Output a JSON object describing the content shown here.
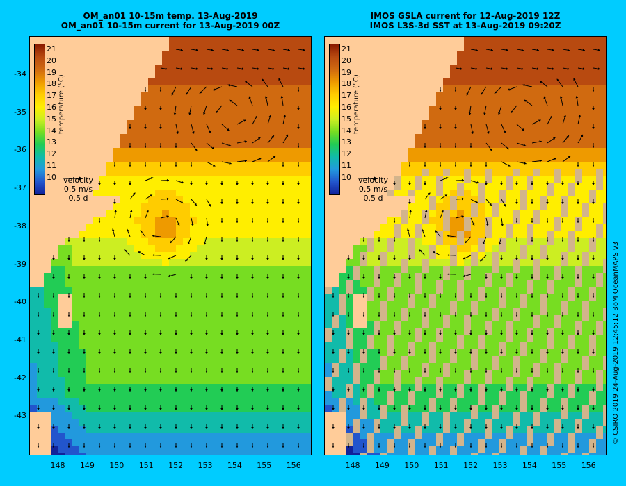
{
  "left_panel": {
    "title_line1": "OM_an01 10-15m temp. 13-Aug-2019",
    "title_line2": "OM_an01 10-15m current for 13-Aug-2019 00Z"
  },
  "right_panel": {
    "title_line1": "IMOS GSLA current for 12-Aug-2019 12Z",
    "title_line2": "IMOS L3S-3d SST at 13-Aug-2019 09:20Z"
  },
  "lat_labels": [
    "-34",
    "-35",
    "-36",
    "-37",
    "-38",
    "-39",
    "-40",
    "-41",
    "-42",
    "-43"
  ],
  "lon_labels": [
    "148",
    "149",
    "150",
    "151",
    "152",
    "153",
    "154",
    "155",
    "156"
  ],
  "colorbar": {
    "ticks": [
      "21",
      "20",
      "19",
      "18",
      "17",
      "16",
      "15",
      "14",
      "13",
      "12",
      "11",
      "10"
    ],
    "label": "temperature (°C)",
    "colors": [
      "#8b1a00",
      "#b84a10",
      "#d06a10",
      "#ee9a00",
      "#ffcc00",
      "#ffee00",
      "#ccee22",
      "#77dd22",
      "#22cc55",
      "#11bbaa",
      "#2299dd",
      "#2255cc",
      "#11229a"
    ]
  },
  "velocity_legend": {
    "title": "velocity",
    "speed": "0.5 m/s",
    "duration": "0.5 d"
  },
  "credit": "© CSIRO 2019   24-Aug-2019 12:45:12 BoM OceanMAPS v3",
  "colors": {
    "background": "#00ccff",
    "land": "#ffcc99",
    "missing_data": "#d2b48c"
  }
}
